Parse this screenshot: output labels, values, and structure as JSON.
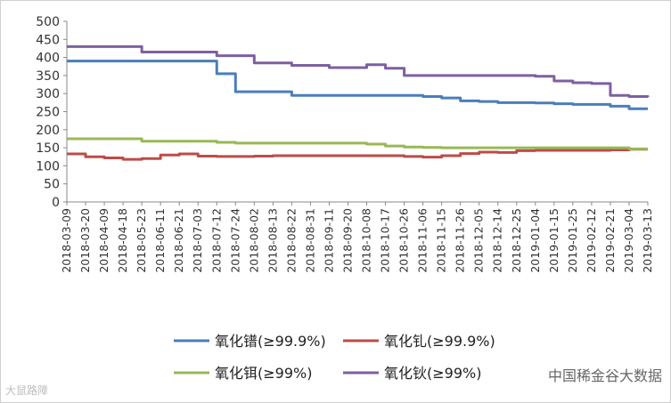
{
  "chart_data": {
    "type": "line",
    "title": "",
    "xlabel": "",
    "ylabel": "",
    "ylim": [
      0,
      500
    ],
    "yticks": [
      0,
      50,
      100,
      150,
      200,
      250,
      300,
      350,
      400,
      450,
      500
    ],
    "grid": false,
    "legend_position": "bottom",
    "categories": [
      "2018-03-09",
      "2018-03-20",
      "2018-04-09",
      "2018-04-18",
      "2018-05-23",
      "2018-06-11",
      "2018-06-21",
      "2018-07-03",
      "2018-07-12",
      "2018-07-24",
      "2018-08-02",
      "2018-08-13",
      "2018-08-22",
      "2018-08-31",
      "2018-09-11",
      "2018-09-20",
      "2018-10-08",
      "2018-10-17",
      "2018-10-26",
      "2018-11-06",
      "2018-11-15",
      "2018-11-26",
      "2018-12-05",
      "2018-12-14",
      "2018-12-25",
      "2019-01-04",
      "2019-01-15",
      "2019-01-25",
      "2019-02-12",
      "2019-02-21",
      "2019-03-04",
      "2019-03-13"
    ],
    "series": [
      {
        "name": "氧化镨(≥99.9%)",
        "color": "#4a7ebb",
        "values": [
          390,
          390,
          390,
          390,
          390,
          390,
          390,
          390,
          355,
          305,
          305,
          305,
          295,
          295,
          295,
          295,
          295,
          295,
          295,
          292,
          288,
          280,
          278,
          275,
          275,
          274,
          272,
          270,
          270,
          265,
          258,
          258
        ]
      },
      {
        "name": "氧化钆(≥99.9%)",
        "color": "#be4b48",
        "values": [
          133,
          125,
          122,
          118,
          120,
          130,
          133,
          127,
          126,
          126,
          127,
          128,
          128,
          128,
          128,
          128,
          128,
          128,
          126,
          124,
          128,
          134,
          138,
          137,
          142,
          143,
          143,
          143,
          143,
          144,
          146,
          146
        ]
      },
      {
        "name": "氧化铒(≥99%)",
        "color": "#98b954",
        "values": [
          175,
          175,
          175,
          175,
          168,
          168,
          168,
          168,
          165,
          163,
          163,
          163,
          163,
          163,
          163,
          163,
          160,
          155,
          152,
          151,
          150,
          150,
          150,
          150,
          150,
          150,
          150,
          150,
          150,
          150,
          147,
          147
        ]
      },
      {
        "name": "氧化钬(≥99%)",
        "color": "#7d60a0",
        "values": [
          430,
          430,
          430,
          430,
          415,
          415,
          415,
          415,
          405,
          405,
          385,
          385,
          378,
          378,
          372,
          372,
          380,
          370,
          350,
          350,
          350,
          350,
          350,
          350,
          350,
          348,
          335,
          330,
          328,
          295,
          292,
          290
        ]
      }
    ]
  },
  "watermark_left": "大鼠路障",
  "watermark_right": "中国稀金谷大数据"
}
